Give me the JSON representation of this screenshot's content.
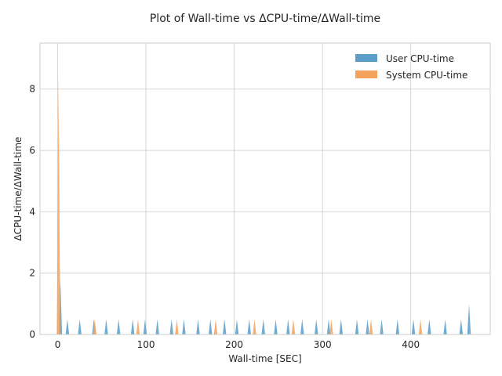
{
  "chart_data": {
    "type": "area",
    "title": "Plot of Wall-time vs ΔCPU-time/ΔWall-time",
    "xlabel": "Wall-time [SEC]",
    "ylabel": "ΔCPU-time/ΔWall-time",
    "xlim": [
      -20,
      490
    ],
    "ylim": [
      0,
      9.5
    ],
    "xticks": [
      0,
      100,
      200,
      300,
      400
    ],
    "yticks": [
      0,
      2,
      4,
      6,
      8
    ],
    "grid": true,
    "legend_position": "top-right",
    "spike_half_width": 2,
    "series": [
      {
        "name": "User CPU-time",
        "color": "#5b9ec9",
        "points": [
          {
            "x": 3,
            "y": 1.8
          },
          {
            "x": 11,
            "y": 0.5
          },
          {
            "x": 25,
            "y": 0.5
          },
          {
            "x": 41,
            "y": 0.5
          },
          {
            "x": 55,
            "y": 0.5
          },
          {
            "x": 69,
            "y": 0.5
          },
          {
            "x": 85,
            "y": 0.5
          },
          {
            "x": 99,
            "y": 0.5
          },
          {
            "x": 113,
            "y": 0.5
          },
          {
            "x": 129,
            "y": 0.5
          },
          {
            "x": 143,
            "y": 0.5
          },
          {
            "x": 159,
            "y": 0.5
          },
          {
            "x": 173,
            "y": 0.5
          },
          {
            "x": 189,
            "y": 0.5
          },
          {
            "x": 203,
            "y": 0.5
          },
          {
            "x": 217,
            "y": 0.5
          },
          {
            "x": 233,
            "y": 0.5
          },
          {
            "x": 247,
            "y": 0.5
          },
          {
            "x": 261,
            "y": 0.5
          },
          {
            "x": 277,
            "y": 0.5
          },
          {
            "x": 293,
            "y": 0.5
          },
          {
            "x": 307,
            "y": 0.5
          },
          {
            "x": 321,
            "y": 0.5
          },
          {
            "x": 339,
            "y": 0.5
          },
          {
            "x": 351,
            "y": 0.5
          },
          {
            "x": 367,
            "y": 0.5
          },
          {
            "x": 385,
            "y": 0.5
          },
          {
            "x": 403,
            "y": 0.5
          },
          {
            "x": 421,
            "y": 0.5
          },
          {
            "x": 439,
            "y": 0.5
          },
          {
            "x": 457,
            "y": 0.5
          },
          {
            "x": 466,
            "y": 1.0
          }
        ]
      },
      {
        "name": "System CPU-time",
        "color": "#f5a25d",
        "points": [
          {
            "x": 1,
            "y": 8.4
          },
          {
            "x": 42,
            "y": 0.5
          },
          {
            "x": 91,
            "y": 0.5
          },
          {
            "x": 135,
            "y": 0.5
          },
          {
            "x": 179,
            "y": 0.5
          },
          {
            "x": 223,
            "y": 0.5
          },
          {
            "x": 267,
            "y": 0.5
          },
          {
            "x": 310,
            "y": 0.5
          },
          {
            "x": 355,
            "y": 0.5
          },
          {
            "x": 411,
            "y": 0.5
          }
        ]
      }
    ]
  }
}
